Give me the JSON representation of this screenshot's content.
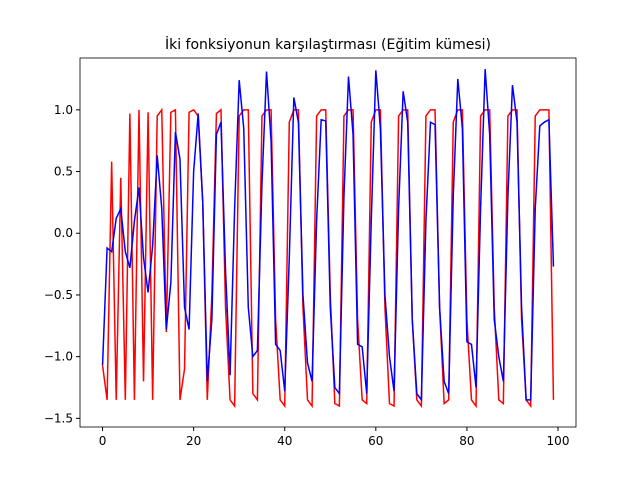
{
  "chart_data": {
    "type": "line",
    "title": "İki fonksiyonun karşılaştırması (Eğitim kümesi)",
    "xlim": [
      -4.95,
      103.95
    ],
    "xticks": [
      0,
      20,
      40,
      60,
      80,
      100
    ],
    "ylim": [
      -1.57,
      1.42
    ],
    "yticks": [
      {
        "value": -1.5,
        "label": "−1.5"
      },
      {
        "value": -1.0,
        "label": "−1.0"
      },
      {
        "value": -0.5,
        "label": "−0.5"
      },
      {
        "value": 0.0,
        "label": "0.0"
      },
      0.5,
      {
        "value": 1.0,
        "label": "1.0"
      }
    ],
    "x": [
      0,
      1,
      2,
      3,
      4,
      5,
      6,
      7,
      8,
      9,
      10,
      11,
      12,
      13,
      14,
      15,
      16,
      17,
      18,
      19,
      20,
      21,
      22,
      23,
      24,
      25,
      26,
      27,
      28,
      29,
      30,
      31,
      32,
      33,
      34,
      35,
      36,
      37,
      38,
      39,
      40,
      41,
      42,
      43,
      44,
      45,
      46,
      47,
      48,
      49,
      50,
      51,
      52,
      53,
      54,
      55,
      56,
      57,
      58,
      59,
      60,
      61,
      62,
      63,
      64,
      65,
      66,
      67,
      68,
      69,
      70,
      71,
      72,
      73,
      74,
      75,
      76,
      77,
      78,
      79,
      80,
      81,
      82,
      83,
      84,
      85,
      86,
      87,
      88,
      89,
      90,
      91,
      92,
      93,
      94,
      95,
      96,
      97,
      98,
      99
    ],
    "series": [
      {
        "color": "#ff0000",
        "values": [
          -1.07,
          -1.35,
          0.58,
          -1.35,
          0.45,
          -1.35,
          0.97,
          -1.35,
          1.0,
          -1.2,
          0.98,
          -1.35,
          0.95,
          1.0,
          -0.8,
          0.98,
          1.0,
          -1.35,
          -1.1,
          0.98,
          1.0,
          0.95,
          0.25,
          -1.35,
          -0.5,
          0.97,
          1.0,
          -0.6,
          -1.35,
          -1.4,
          0.95,
          1.0,
          1.0,
          -1.3,
          -1.35,
          0.95,
          1.0,
          1.0,
          -0.7,
          -1.35,
          -1.4,
          0.9,
          1.0,
          1.0,
          -0.6,
          -1.35,
          -1.4,
          0.95,
          1.0,
          1.0,
          -0.5,
          -1.38,
          -1.4,
          0.95,
          1.0,
          1.0,
          -0.7,
          -1.35,
          -1.38,
          0.9,
          1.0,
          1.0,
          -0.6,
          -1.38,
          -1.4,
          0.95,
          1.0,
          1.0,
          -0.7,
          -1.35,
          -1.4,
          0.95,
          1.0,
          1.0,
          -0.6,
          -1.38,
          -1.35,
          0.9,
          1.0,
          1.0,
          -0.7,
          -1.35,
          -1.4,
          0.95,
          1.0,
          1.0,
          -0.6,
          -1.35,
          -1.38,
          0.95,
          1.0,
          1.0,
          -0.7,
          -1.35,
          -1.4,
          0.95,
          1.0,
          1.0,
          1.0,
          -1.35
        ]
      },
      {
        "color": "#0000ff",
        "values": [
          -1.07,
          -0.12,
          -0.15,
          0.12,
          0.2,
          -0.15,
          -0.28,
          0.1,
          0.37,
          -0.2,
          -0.48,
          -0.1,
          0.63,
          0.2,
          -0.78,
          -0.4,
          0.82,
          0.6,
          -0.6,
          -0.78,
          0.5,
          0.97,
          0.25,
          -1.2,
          -0.7,
          0.8,
          0.9,
          -0.3,
          -1.15,
          0.2,
          1.24,
          0.85,
          -0.6,
          -1.0,
          -0.95,
          0.4,
          1.31,
          0.75,
          -0.9,
          -0.95,
          -1.28,
          -0.2,
          1.1,
          0.9,
          -0.5,
          -1.05,
          -1.2,
          0.1,
          0.92,
          0.91,
          -0.6,
          -1.25,
          -1.3,
          0.3,
          1.27,
          0.8,
          -0.9,
          -0.92,
          -1.3,
          0.1,
          1.32,
          0.85,
          -0.5,
          -1.0,
          -1.28,
          0.2,
          1.15,
          0.9,
          -0.7,
          -1.3,
          -1.35,
          0.1,
          0.9,
          0.88,
          -0.6,
          -1.2,
          -1.3,
          0.3,
          1.25,
          0.85,
          -0.88,
          -0.9,
          -1.25,
          0.2,
          1.33,
          0.8,
          -0.7,
          -1.0,
          -1.2,
          0.3,
          1.2,
          0.9,
          -0.6,
          -1.35,
          -1.35,
          0.2,
          0.87,
          0.9,
          0.92,
          -0.27
        ]
      }
    ]
  }
}
